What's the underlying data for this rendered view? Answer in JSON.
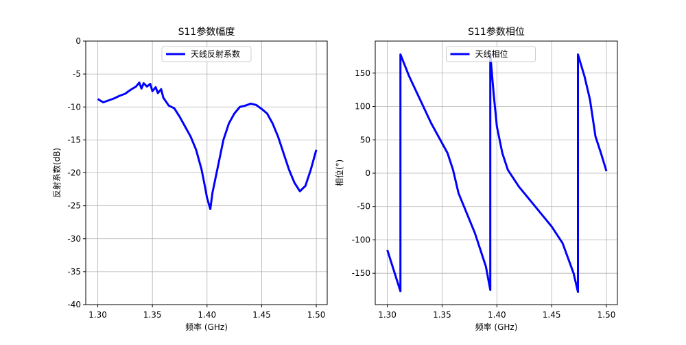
{
  "chart_data": [
    {
      "type": "line",
      "title": "S11参数幅度",
      "x_label": "频率 (GHz)",
      "y_label": "反射系数(dB)",
      "x": [
        1.3,
        1.305,
        1.31,
        1.315,
        1.32,
        1.325,
        1.33,
        1.335,
        1.338,
        1.34,
        1.342,
        1.345,
        1.348,
        1.35,
        1.353,
        1.355,
        1.358,
        1.36,
        1.365,
        1.37,
        1.375,
        1.38,
        1.385,
        1.39,
        1.395,
        1.398,
        1.4,
        1.403,
        1.405,
        1.41,
        1.415,
        1.42,
        1.425,
        1.43,
        1.435,
        1.44,
        1.445,
        1.45,
        1.455,
        1.46,
        1.465,
        1.47,
        1.475,
        1.48,
        1.485,
        1.488,
        1.49,
        1.495,
        1.5
      ],
      "series": [
        {
          "name": "天线反射系数",
          "color": "#0000ff",
          "values": [
            -8.8,
            -9.3,
            -9.0,
            -8.7,
            -8.3,
            -8.0,
            -7.4,
            -6.9,
            -6.3,
            -7.2,
            -6.4,
            -6.9,
            -6.5,
            -7.6,
            -7.0,
            -7.9,
            -7.3,
            -8.6,
            -9.8,
            -10.2,
            -11.5,
            -13.0,
            -14.5,
            -16.5,
            -19.5,
            -22.0,
            -23.8,
            -25.5,
            -23.0,
            -19.0,
            -15.0,
            -12.5,
            -11.0,
            -10.0,
            -9.8,
            -9.5,
            -9.7,
            -10.3,
            -11.0,
            -12.5,
            -14.5,
            -17.0,
            -19.5,
            -21.5,
            -22.8,
            -22.3,
            -22.0,
            -19.5,
            -16.5
          ]
        }
      ],
      "xlim": [
        1.289,
        1.51
      ],
      "ylim": [
        -40,
        0
      ],
      "xticks": [
        {
          "value": 1.3,
          "label": "1.30"
        },
        {
          "value": 1.35,
          "label": "1.35"
        },
        {
          "value": 1.4,
          "label": "1.40"
        },
        {
          "value": 1.45,
          "label": "1.45"
        },
        {
          "value": 1.5,
          "label": "1.50"
        }
      ],
      "yticks": [
        0,
        -5,
        -10,
        -15,
        -20,
        -25,
        -30,
        -35,
        -40
      ],
      "grid": true,
      "legend": "upper center"
    },
    {
      "type": "line",
      "title": "S11参数相位",
      "x_label": "频率 (GHz)",
      "y_label": "相位(°)",
      "x": [
        1.3,
        1.312,
        1.312,
        1.32,
        1.33,
        1.34,
        1.35,
        1.355,
        1.36,
        1.365,
        1.37,
        1.38,
        1.39,
        1.394,
        1.394,
        1.397,
        1.4,
        1.405,
        1.41,
        1.42,
        1.43,
        1.44,
        1.45,
        1.46,
        1.47,
        1.474,
        1.474,
        1.48,
        1.485,
        1.49,
        1.495,
        1.5
      ],
      "series": [
        {
          "name": "天线相位",
          "color": "#0000ff",
          "values": [
            -115,
            -177,
            178,
            145,
            110,
            75,
            45,
            30,
            5,
            -30,
            -50,
            -90,
            -140,
            -175,
            178,
            120,
            70,
            30,
            5,
            -20,
            -40,
            -60,
            -80,
            -105,
            -150,
            -178,
            178,
            145,
            110,
            55,
            30,
            3
          ]
        }
      ],
      "xlim": [
        1.289,
        1.51
      ],
      "ylim": [
        -197,
        198
      ],
      "xticks": [
        {
          "value": 1.3,
          "label": "1.30"
        },
        {
          "value": 1.35,
          "label": "1.35"
        },
        {
          "value": 1.4,
          "label": "1.40"
        },
        {
          "value": 1.45,
          "label": "1.45"
        },
        {
          "value": 1.5,
          "label": "1.50"
        }
      ],
      "yticks": [
        150,
        100,
        50,
        0,
        -50,
        -100,
        -150
      ],
      "grid": true,
      "legend": "upper center"
    }
  ]
}
